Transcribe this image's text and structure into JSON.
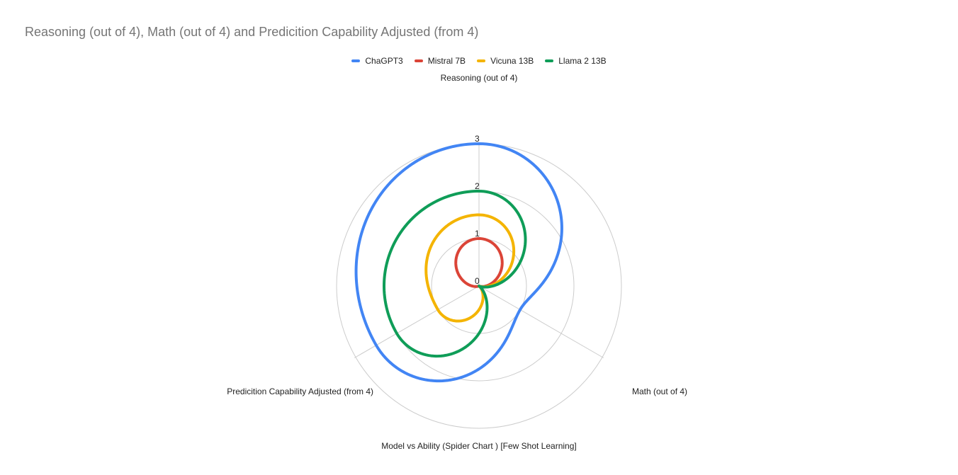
{
  "chart_data": {
    "type": "radar",
    "title": "Reasoning  (out of 4), Math (out of 4) and Predicition Capability Adjusted (from 4)",
    "subtitle": "Model vs Ability (Spider Chart ) [Few Shot Learning]",
    "axes": [
      "Reasoning  (out of 4)",
      "Math (out of 4)",
      "Predicition Capability Adjusted (from 4)"
    ],
    "rlim": [
      0,
      3
    ],
    "ticks": [
      "0",
      "1",
      "2",
      "3"
    ],
    "legend_position": "top-center",
    "series": [
      {
        "name": "ChaGPT3",
        "color": "#4285f4",
        "values": [
          3,
          1,
          2.5
        ]
      },
      {
        "name": "Mistral 7B",
        "color": "#db4437",
        "values": [
          1,
          0,
          0
        ]
      },
      {
        "name": "Vicuna 13B",
        "color": "#f4b400",
        "values": [
          1.5,
          0,
          1
        ]
      },
      {
        "name": "Llama 2 13B",
        "color": "#0f9d58",
        "values": [
          2,
          0,
          2
        ]
      }
    ]
  }
}
